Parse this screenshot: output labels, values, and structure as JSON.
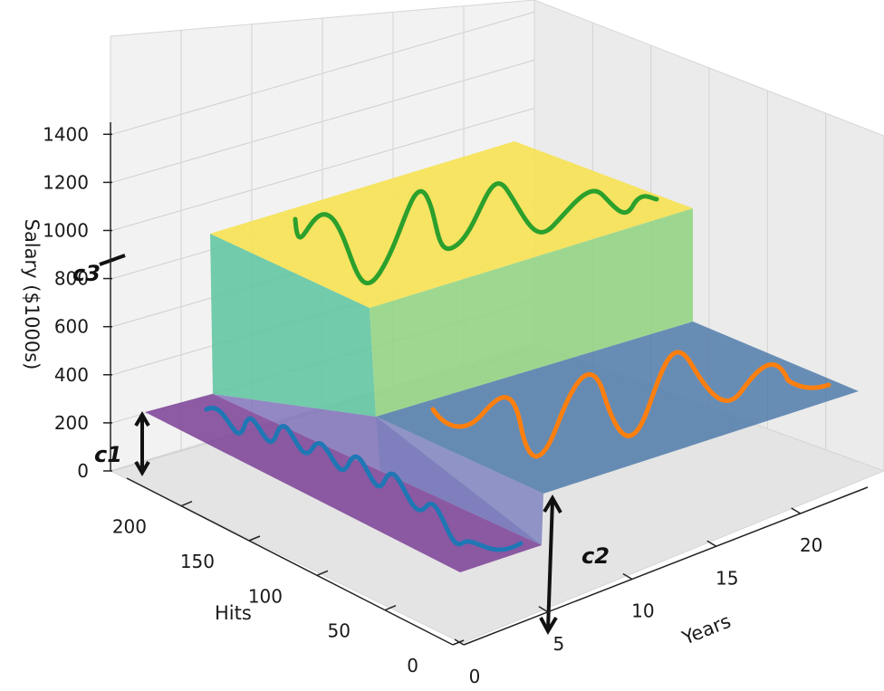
{
  "chart_data": {
    "type": "surface3d",
    "axes": {
      "x": {
        "label": "Years",
        "range": [
          0,
          24
        ],
        "ticks": [
          0,
          5,
          10,
          15,
          20
        ]
      },
      "y": {
        "label": "Hits",
        "range": [
          0,
          240
        ],
        "ticks": [
          0,
          50,
          100,
          150,
          200
        ]
      },
      "z": {
        "label": "Salary ($1000s)",
        "range": [
          0,
          1450
        ],
        "ticks": [
          0,
          200,
          400,
          600,
          800,
          1000,
          1200,
          1400
        ]
      }
    },
    "grid": true,
    "regions": [
      {
        "years": [
          0,
          4.5
        ],
        "hits": [
          0,
          240
        ],
        "salary": 0,
        "color": "#7b3f96"
      },
      {
        "years": [
          4.5,
          24
        ],
        "hits": [
          0,
          117.5
        ],
        "salary": 400,
        "color": "#4a77a8"
      },
      {
        "years": [
          4.5,
          24
        ],
        "hits": [
          117.5,
          240
        ],
        "salary": 1200,
        "color": "#f5e35a"
      }
    ],
    "annotations": [
      {
        "text": "c1",
        "color": "#111111"
      },
      {
        "text": "c2",
        "color": "#111111"
      },
      {
        "text": "c3",
        "color": "#111111"
      }
    ],
    "hand_drawn_curves": [
      {
        "region": 0,
        "color": "#1f77b4"
      },
      {
        "region": 1,
        "color": "#ff7f0e"
      },
      {
        "region": 2,
        "color": "#2ca02c"
      }
    ]
  }
}
